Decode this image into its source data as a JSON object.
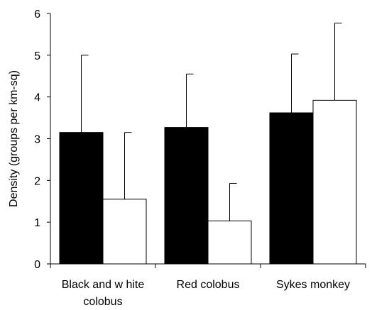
{
  "chart_data": {
    "type": "bar",
    "title": "",
    "xlabel": "",
    "ylabel": "Density (groups per km-sq)",
    "ylim": [
      0,
      6
    ],
    "yticks": [
      0,
      1,
      2,
      3,
      4,
      5,
      6
    ],
    "categories": [
      [
        "Black and w hite",
        "colobus"
      ],
      [
        "Red colobus"
      ],
      [
        "Sykes monkey"
      ]
    ],
    "series": [
      {
        "color": "#000000",
        "values": [
          3.15,
          3.27,
          3.62
        ],
        "error_upper": [
          5.0,
          4.55,
          5.03
        ]
      },
      {
        "color": "#ffffff",
        "values": [
          1.55,
          1.03,
          3.92
        ],
        "error_upper": [
          3.15,
          1.93,
          5.77
        ]
      }
    ],
    "legend": "none",
    "grid": false
  }
}
